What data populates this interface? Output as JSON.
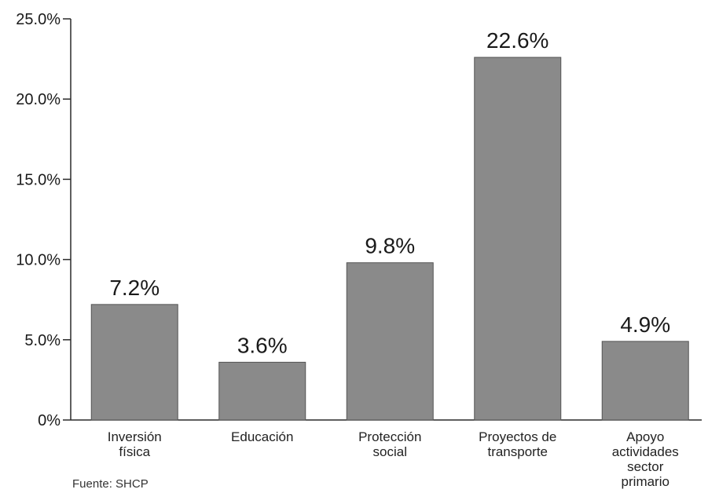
{
  "chart_data": {
    "type": "bar",
    "categories": [
      [
        "Inversión",
        "física"
      ],
      [
        "Educación"
      ],
      [
        "Protección",
        "social"
      ],
      [
        "Proyectos de",
        "transporte"
      ],
      [
        "Apoyo",
        "actividades",
        "sector",
        "primario"
      ]
    ],
    "values": [
      7.2,
      3.6,
      9.8,
      22.6,
      4.9
    ],
    "data_labels": [
      "7.2%",
      "3.6%",
      "9.8%",
      "22.6%",
      "4.9%"
    ],
    "y_ticks": [
      0,
      5,
      10,
      15,
      20,
      25
    ],
    "y_tick_labels": [
      "0%",
      "5.0%",
      "10.0%",
      "15.0%",
      "20.0%",
      "25.0%"
    ],
    "ylim": [
      0,
      25
    ],
    "grid": false,
    "bar_color": "#8a8a8a",
    "bar_edge_color": "#555555"
  },
  "source": "Fuente: SHCP"
}
